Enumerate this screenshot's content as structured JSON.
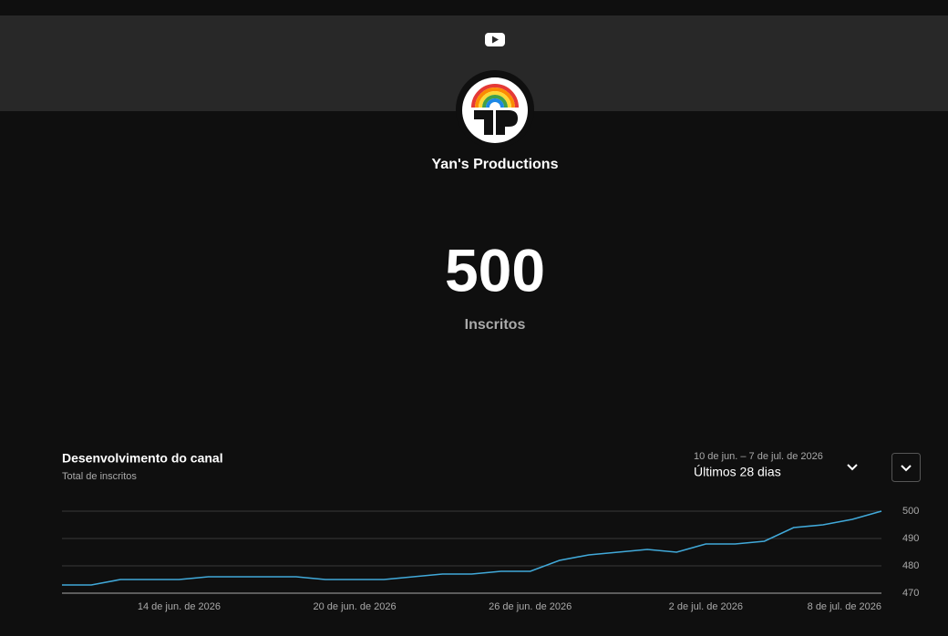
{
  "channel": {
    "name": "Yan's Productions"
  },
  "counter": {
    "value": 500,
    "label": "Inscritos"
  },
  "controls": {
    "date_range": "10 de jun. – 7 de jul. de 2026",
    "period": "Últimos 28 dias"
  },
  "chart_data": {
    "type": "line",
    "title": "Desenvolvimento do canal",
    "subtitle": "Total de inscritos",
    "categories": [
      null,
      null,
      null,
      null,
      "14 de jun. de 2026",
      null,
      null,
      null,
      null,
      null,
      "20 de jun. de 2026",
      null,
      null,
      null,
      null,
      null,
      "26 de jun. de 2026",
      null,
      null,
      null,
      null,
      null,
      "2 de jul. de 2026",
      null,
      null,
      null,
      null,
      null,
      "8 de jul. de 2026"
    ],
    "values": [
      473,
      473,
      475,
      475,
      475,
      476,
      476,
      476,
      476,
      475,
      475,
      475,
      476,
      477,
      477,
      478,
      478,
      482,
      484,
      485,
      486,
      485,
      488,
      488,
      489,
      494,
      495,
      497,
      500
    ],
    "color": "#41a9d9",
    "ylim": [
      470,
      500
    ],
    "yticks": [
      470,
      480,
      490,
      500
    ],
    "grid": true
  }
}
